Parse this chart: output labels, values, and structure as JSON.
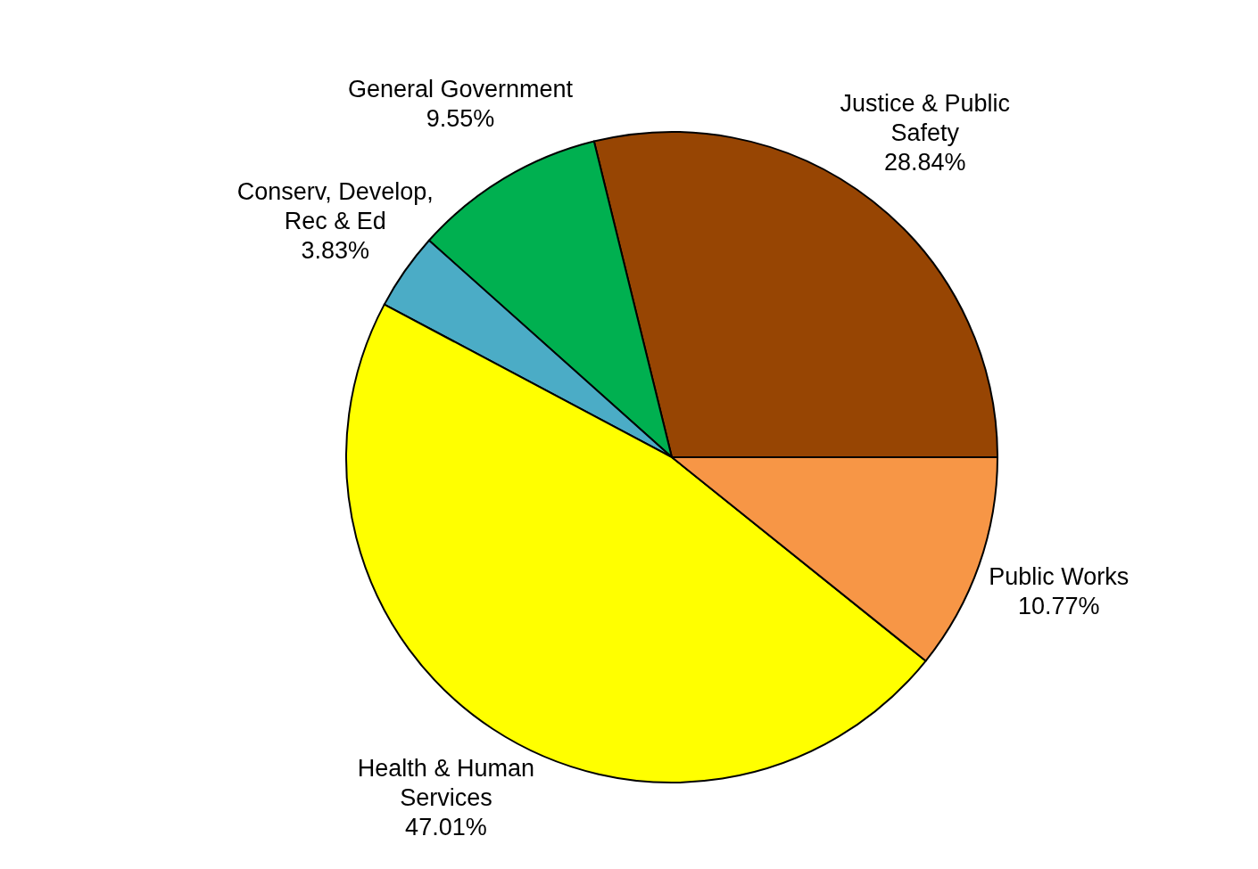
{
  "chart_data": {
    "type": "pie",
    "categories": [
      "Justice & Public Safety",
      "General Government",
      "Conserv, Develop, Rec & Ed",
      "Health & Human Services",
      "Public Works"
    ],
    "values": [
      28.84,
      9.55,
      3.83,
      47.01,
      10.77
    ],
    "colors": [
      "#974503",
      "#00b050",
      "#4bacc6",
      "#ffff00",
      "#f79646"
    ],
    "value_labels": [
      "28.84%",
      "9.55%",
      "3.83%",
      "47.01%",
      "10.77%"
    ]
  }
}
